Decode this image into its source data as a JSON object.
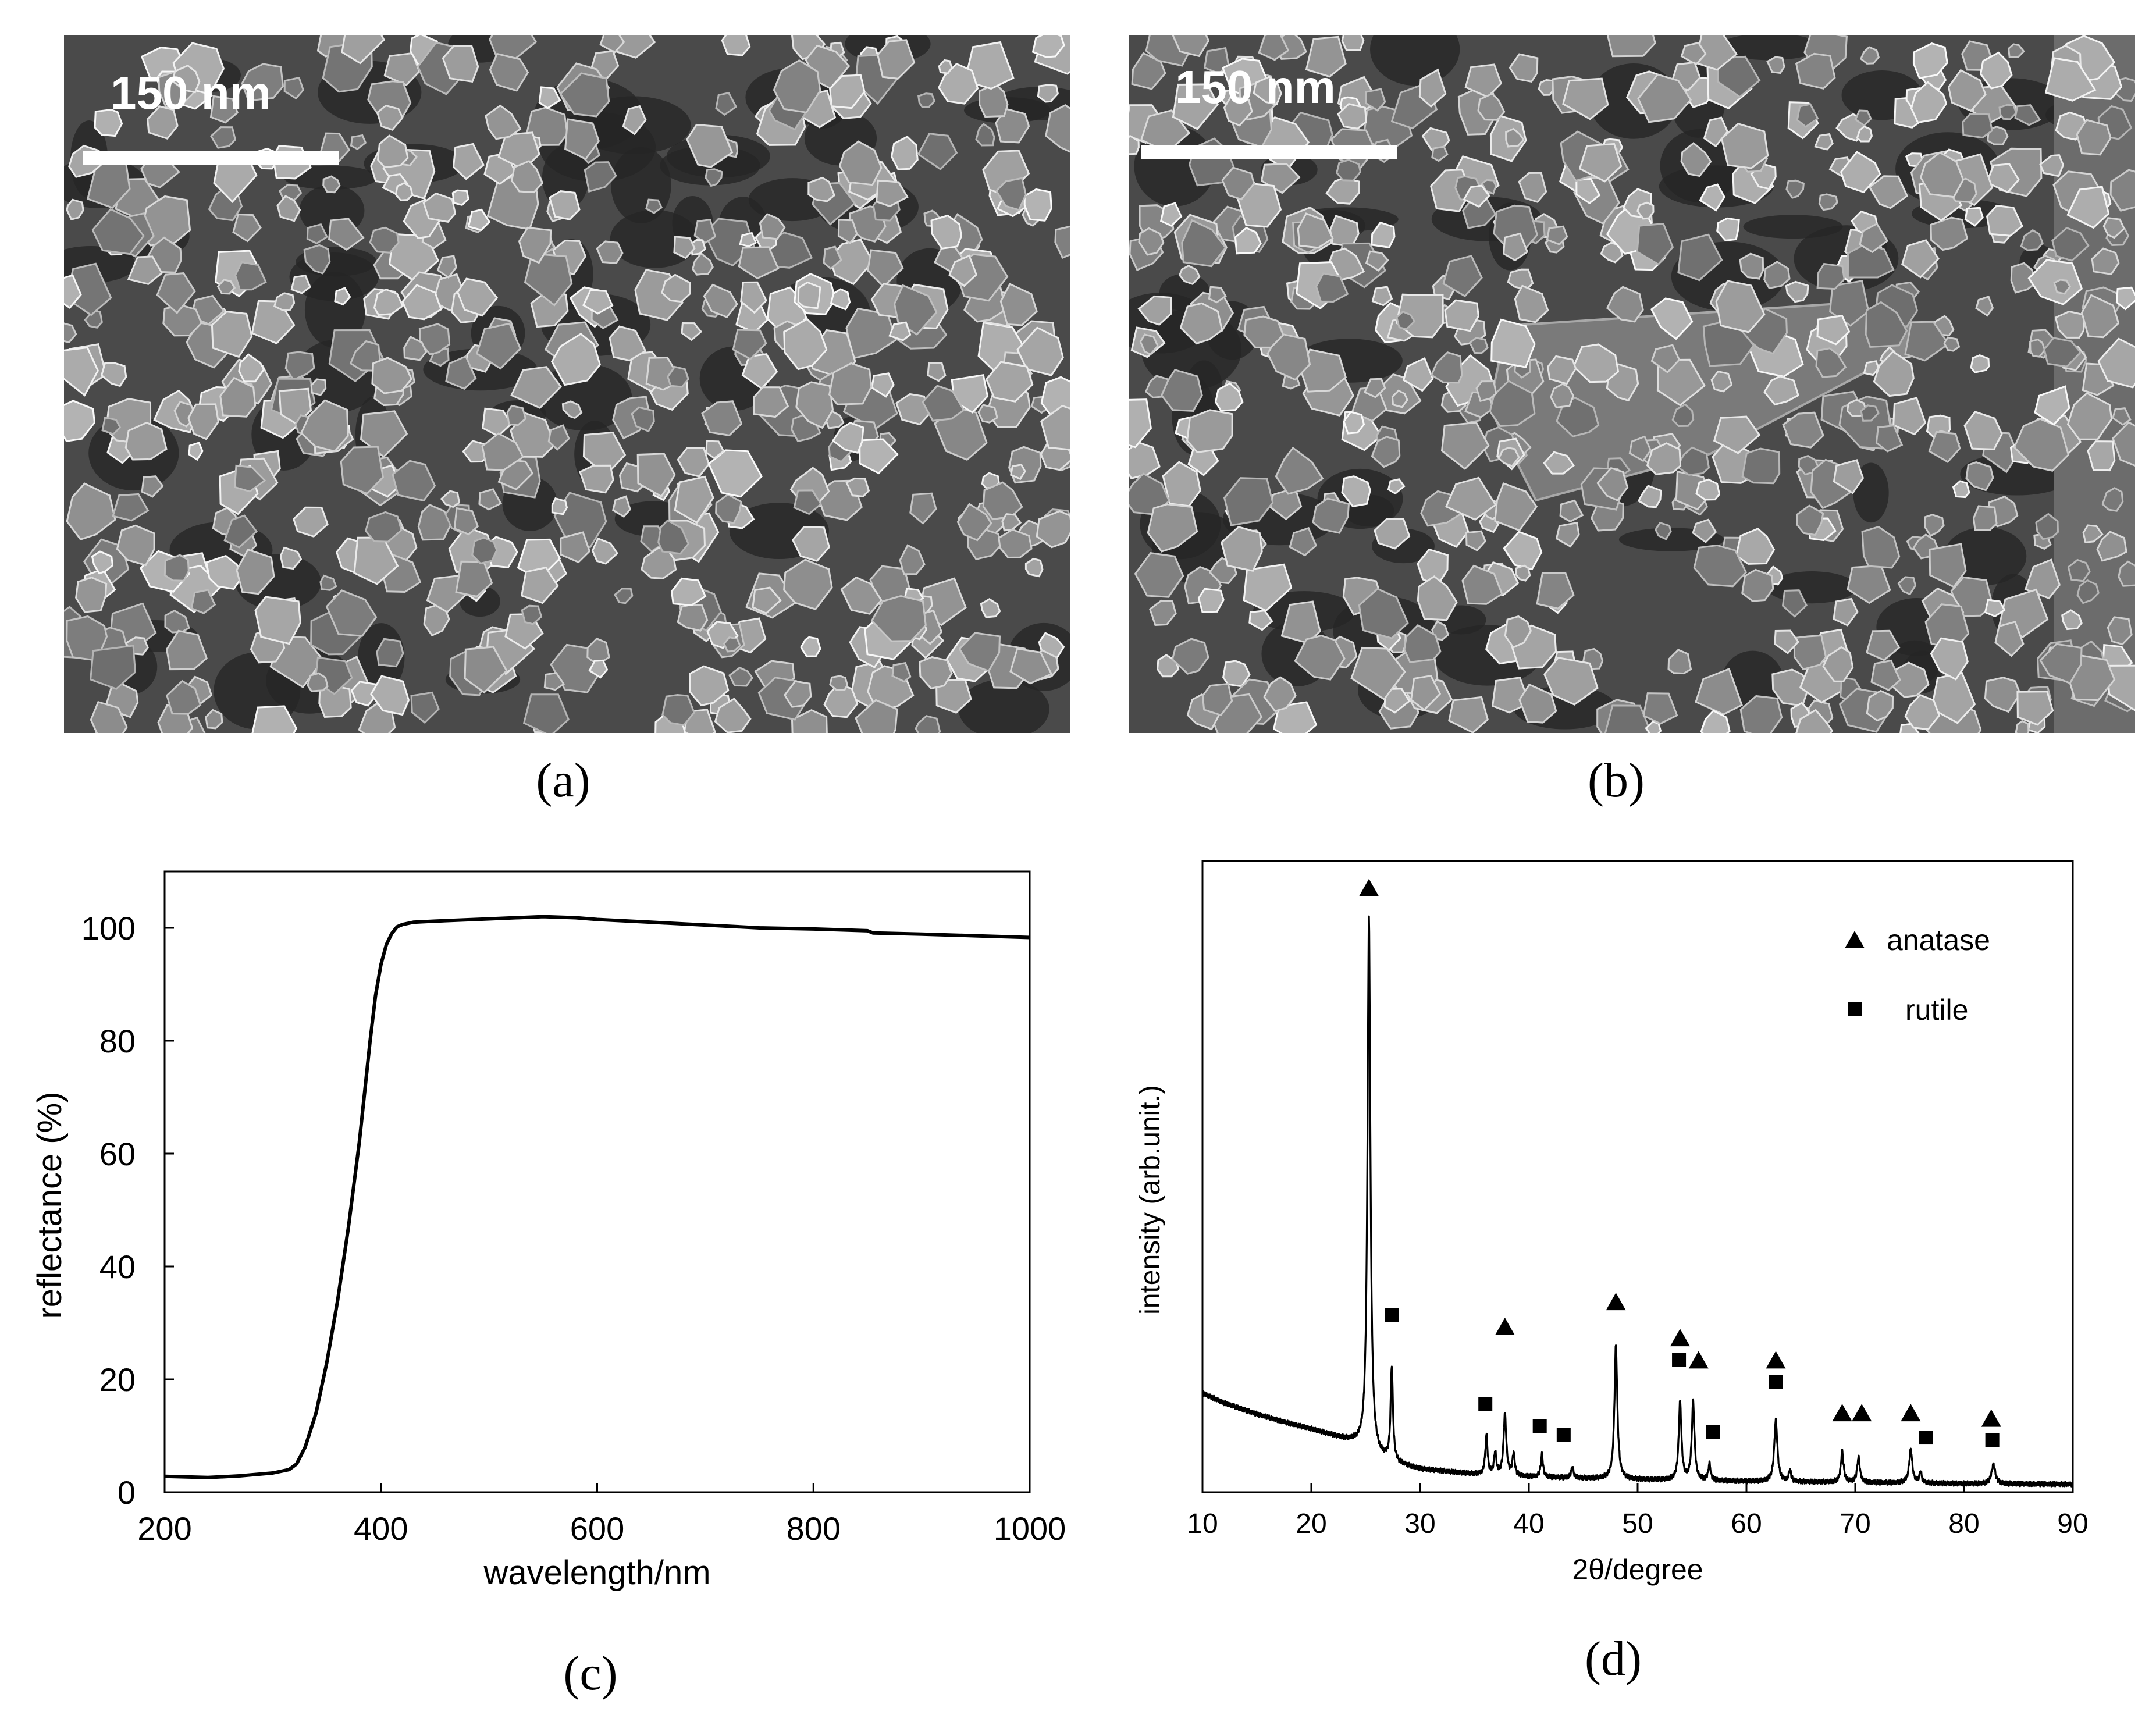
{
  "panels": {
    "a": {
      "label": "(a)",
      "scale_text": "150 nm",
      "image": "sem-micrograph-fine-particles"
    },
    "b": {
      "label": "(b)",
      "scale_text": "150 nm",
      "image": "sem-micrograph-particles-with-platelet"
    },
    "c": {
      "label": "(c)"
    },
    "d": {
      "label": "(d)"
    }
  },
  "chart_data": [
    {
      "panel": "c",
      "type": "line",
      "title": "",
      "xlabel": "wavelength/nm",
      "ylabel": "reflectance (%)",
      "xlim": [
        200,
        1000
      ],
      "ylim": [
        0,
        110
      ],
      "xticks": [
        200,
        400,
        600,
        800,
        1000
      ],
      "yticks": [
        0,
        20,
        40,
        60,
        80,
        100
      ],
      "grid": false,
      "series": [
        {
          "x": [
            200,
            240,
            270,
            300,
            315,
            322,
            330,
            340,
            350,
            360,
            370,
            380,
            390,
            395,
            400,
            405,
            410,
            415,
            420,
            430,
            450,
            500,
            550,
            580,
            600,
            650,
            700,
            750,
            800,
            850,
            855,
            900,
            950,
            1000
          ],
          "y": [
            2.8,
            2.6,
            2.9,
            3.4,
            4.0,
            5.0,
            8.0,
            14.0,
            23.0,
            34.0,
            47.0,
            62.0,
            80.0,
            88.0,
            93.5,
            97.0,
            99.0,
            100.2,
            100.6,
            101.0,
            101.2,
            101.6,
            102.0,
            101.8,
            101.5,
            101.0,
            100.5,
            100.0,
            99.8,
            99.5,
            99.1,
            98.9,
            98.6,
            98.3
          ]
        }
      ]
    },
    {
      "panel": "d",
      "type": "line",
      "title": "",
      "xlabel": "2θ/degree",
      "ylabel": "intensity (arb.unit.)",
      "xlim": [
        10,
        90
      ],
      "ylim": [
        0,
        100
      ],
      "xticks": [
        10,
        20,
        30,
        40,
        50,
        60,
        70,
        80,
        90
      ],
      "yticks_visible": false,
      "grid": false,
      "legend": {
        "position": "top-right",
        "entries": [
          {
            "name": "anatase",
            "marker": "triangle"
          },
          {
            "name": "rutile",
            "marker": "square"
          }
        ]
      },
      "background": {
        "x": [
          10,
          12,
          15,
          18,
          20,
          22,
          24,
          26,
          28,
          30,
          35,
          40,
          50,
          60,
          70,
          80,
          90
        ],
        "y": [
          17,
          15.2,
          13.2,
          11.5,
          10.5,
          9.3,
          8.0,
          5.5,
          4.2,
          3.3,
          2.4,
          1.9,
          1.4,
          1.1,
          0.9,
          0.7,
          0.6
        ]
      },
      "peaks": [
        {
          "x": 25.3,
          "y": 96,
          "w": 0.32
        },
        {
          "x": 27.4,
          "y": 17,
          "w": 0.25
        },
        {
          "x": 36.1,
          "y": 7,
          "w": 0.25
        },
        {
          "x": 36.9,
          "y": 4,
          "w": 0.25
        },
        {
          "x": 37.8,
          "y": 11,
          "w": 0.3
        },
        {
          "x": 38.6,
          "y": 4,
          "w": 0.25
        },
        {
          "x": 41.2,
          "y": 4,
          "w": 0.25
        },
        {
          "x": 44.0,
          "y": 2,
          "w": 0.25
        },
        {
          "x": 48.0,
          "y": 24,
          "w": 0.32
        },
        {
          "x": 53.9,
          "y": 14,
          "w": 0.3
        },
        {
          "x": 55.1,
          "y": 14,
          "w": 0.3
        },
        {
          "x": 56.6,
          "y": 3,
          "w": 0.25
        },
        {
          "x": 62.7,
          "y": 11,
          "w": 0.35
        },
        {
          "x": 64.0,
          "y": 2,
          "w": 0.25
        },
        {
          "x": 68.8,
          "y": 5.5,
          "w": 0.3
        },
        {
          "x": 70.3,
          "y": 4.5,
          "w": 0.3
        },
        {
          "x": 75.1,
          "y": 6,
          "w": 0.35
        },
        {
          "x": 76.0,
          "y": 2,
          "w": 0.25
        },
        {
          "x": 82.7,
          "y": 3.5,
          "w": 0.4
        }
      ],
      "markers": {
        "anatase": [
          {
            "x": 25.3,
            "y": 108
          },
          {
            "x": 37.8,
            "y": 29
          },
          {
            "x": 48.0,
            "y": 33.5
          },
          {
            "x": 53.9,
            "y": 27
          },
          {
            "x": 55.6,
            "y": 23
          },
          {
            "x": 62.7,
            "y": 23
          },
          {
            "x": 68.8,
            "y": 13.5
          },
          {
            "x": 70.6,
            "y": 13.5
          },
          {
            "x": 75.1,
            "y": 13.5
          },
          {
            "x": 82.5,
            "y": 12.5
          }
        ],
        "rutile": [
          {
            "x": 27.4,
            "y": 31
          },
          {
            "x": 36.0,
            "y": 15
          },
          {
            "x": 41.0,
            "y": 11
          },
          {
            "x": 43.2,
            "y": 9.5
          },
          {
            "x": 53.8,
            "y": 23
          },
          {
            "x": 56.9,
            "y": 10
          },
          {
            "x": 62.7,
            "y": 19
          },
          {
            "x": 76.5,
            "y": 9
          },
          {
            "x": 82.6,
            "y": 8.5
          }
        ]
      }
    }
  ]
}
